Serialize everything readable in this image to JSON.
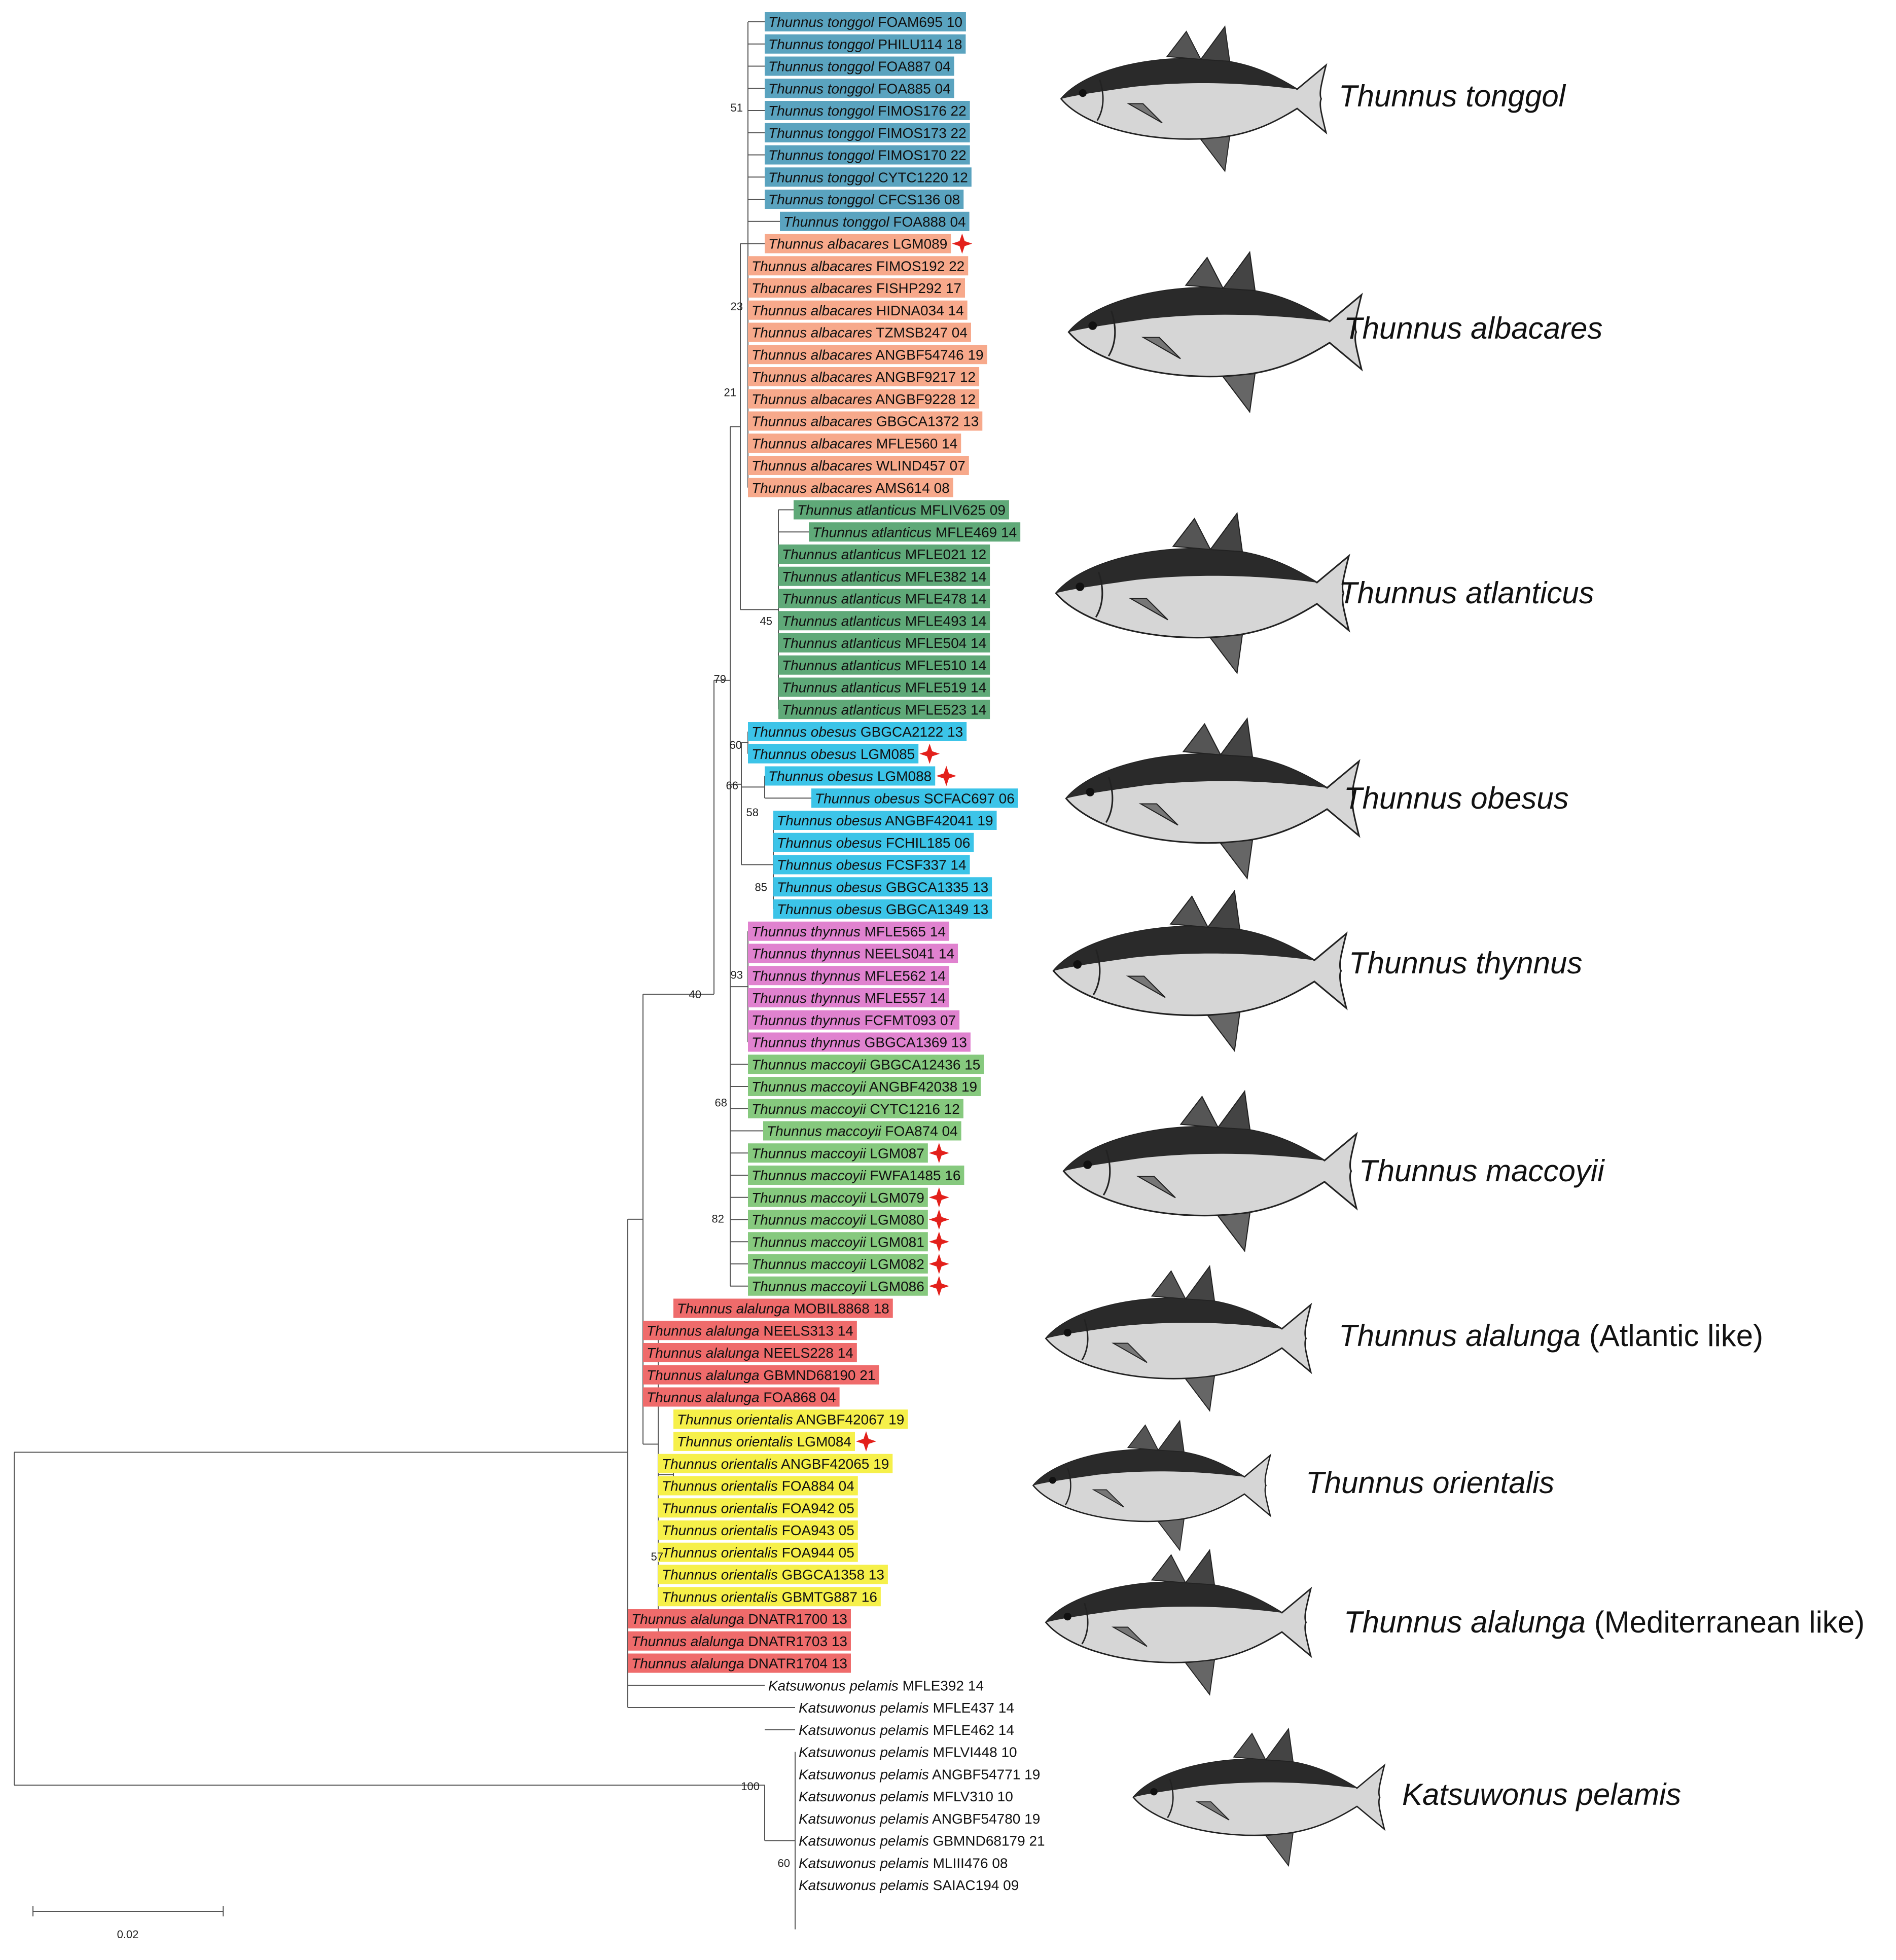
{
  "figure": {
    "title": "",
    "scale_bar": {
      "value": 0.02,
      "label": "0.02"
    }
  },
  "colors": {
    "tonggol": "#5aa3bf",
    "albacares": "#f7a98b",
    "atlantica": "#5fa978",
    "obesus": "#3cc4e8",
    "thynnus": "#e082cf",
    "maccoyii": "#86c97e",
    "alalunga": "#ef6b6b",
    "orientalis": "#f6f04a",
    "pelamis": "none",
    "marker": "#e3201b",
    "branch": "#555555"
  },
  "groups": [
    {
      "id": "tonggol",
      "species_label": [
        "Thunnus tonggol",
        ""
      ],
      "fish_icon": "tuna-illustration"
    },
    {
      "id": "albacares",
      "species_label": [
        "Thunnus albacares",
        ""
      ],
      "fish_icon": "tuna-illustration"
    },
    {
      "id": "atlantica",
      "species_label": [
        "Thunnus atlanticus",
        ""
      ],
      "fish_icon": "tuna-illustration"
    },
    {
      "id": "obesus",
      "species_label": [
        "Thunnus obesus",
        ""
      ],
      "fish_icon": "tuna-illustration"
    },
    {
      "id": "thynnus",
      "species_label": [
        "Thunnus thynnus",
        ""
      ],
      "fish_icon": "tuna-illustration"
    },
    {
      "id": "maccoyii",
      "species_label": [
        "Thunnus maccoyii",
        ""
      ],
      "fish_icon": "tuna-illustration"
    },
    {
      "id": "alalunga_atl",
      "species_label": [
        "Thunnus alalunga",
        " (Atlantic like)"
      ],
      "fish_icon": "tuna-illustration"
    },
    {
      "id": "orientalis",
      "species_label": [
        "Thunnus orientalis",
        ""
      ],
      "fish_icon": "tuna-illustration"
    },
    {
      "id": "alalunga_med",
      "species_label": [
        "Thunnus alalunga",
        " (Mediterranean like)"
      ],
      "fish_icon": "tuna-illustration"
    },
    {
      "id": "pelamis",
      "species_label": [
        "Katsuwonus pelamis",
        ""
      ],
      "fish_icon": "skipjack-illustration"
    }
  ],
  "tips": [
    {
      "species": "Thunnus tonggol",
      "code": "FOAM695 10",
      "group": "tonggol",
      "marked": false
    },
    {
      "species": "Thunnus tonggol",
      "code": "PHILU114 18",
      "group": "tonggol",
      "marked": false
    },
    {
      "species": "Thunnus tonggol",
      "code": "FOA887 04",
      "group": "tonggol",
      "marked": false
    },
    {
      "species": "Thunnus tonggol",
      "code": "FOA885 04",
      "group": "tonggol",
      "marked": false
    },
    {
      "species": "Thunnus tonggol",
      "code": "FIMOS176 22",
      "group": "tonggol",
      "marked": false
    },
    {
      "species": "Thunnus tonggol",
      "code": "FIMOS173 22",
      "group": "tonggol",
      "marked": false
    },
    {
      "species": "Thunnus tonggol",
      "code": "FIMOS170 22",
      "group": "tonggol",
      "marked": false
    },
    {
      "species": "Thunnus tonggol",
      "code": "CYTC1220 12",
      "group": "tonggol",
      "marked": false
    },
    {
      "species": "Thunnus tonggol",
      "code": "CFCS136 08",
      "group": "tonggol",
      "marked": false
    },
    {
      "species": "Thunnus tonggol",
      "code": "FOA888 04",
      "group": "tonggol",
      "marked": false
    },
    {
      "species": "Thunnus albacares",
      "code": "LGM089",
      "group": "albacares",
      "marked": true
    },
    {
      "species": "Thunnus albacares",
      "code": "FIMOS192 22",
      "group": "albacares",
      "marked": false
    },
    {
      "species": "Thunnus albacares",
      "code": "FISHP292 17",
      "group": "albacares",
      "marked": false
    },
    {
      "species": "Thunnus albacares",
      "code": "HIDNA034 14",
      "group": "albacares",
      "marked": false
    },
    {
      "species": "Thunnus albacares",
      "code": "TZMSB247 04",
      "group": "albacares",
      "marked": false
    },
    {
      "species": "Thunnus albacares",
      "code": "ANGBF54746 19",
      "group": "albacares",
      "marked": false
    },
    {
      "species": "Thunnus albacares",
      "code": "ANGBF9217 12",
      "group": "albacares",
      "marked": false
    },
    {
      "species": "Thunnus albacares",
      "code": "ANGBF9228 12",
      "group": "albacares",
      "marked": false
    },
    {
      "species": "Thunnus albacares",
      "code": "GBGCA1372 13",
      "group": "albacares",
      "marked": false
    },
    {
      "species": "Thunnus albacares",
      "code": "MFLE560 14",
      "group": "albacares",
      "marked": false
    },
    {
      "species": "Thunnus albacares",
      "code": "WLIND457 07",
      "group": "albacares",
      "marked": false
    },
    {
      "species": "Thunnus albacares",
      "code": "AMS614 08",
      "group": "albacares",
      "marked": false
    },
    {
      "species": "Thunnus atlanticus",
      "code": "MFLIV625 09",
      "group": "atlantica",
      "marked": false
    },
    {
      "species": "Thunnus atlanticus",
      "code": "MFLE469 14",
      "group": "atlantica",
      "marked": false
    },
    {
      "species": "Thunnus atlanticus",
      "code": "MFLE021 12",
      "group": "atlantica",
      "marked": false
    },
    {
      "species": "Thunnus atlanticus",
      "code": "MFLE382 14",
      "group": "atlantica",
      "marked": false
    },
    {
      "species": "Thunnus atlanticus",
      "code": "MFLE478 14",
      "group": "atlantica",
      "marked": false
    },
    {
      "species": "Thunnus atlanticus",
      "code": "MFLE493 14",
      "group": "atlantica",
      "marked": false
    },
    {
      "species": "Thunnus atlanticus",
      "code": "MFLE504 14",
      "group": "atlantica",
      "marked": false
    },
    {
      "species": "Thunnus atlanticus",
      "code": "MFLE510 14",
      "group": "atlantica",
      "marked": false
    },
    {
      "species": "Thunnus atlanticus",
      "code": "MFLE519 14",
      "group": "atlantica",
      "marked": false
    },
    {
      "species": "Thunnus atlanticus",
      "code": "MFLE523 14",
      "group": "atlantica",
      "marked": false
    },
    {
      "species": "Thunnus obesus",
      "code": "GBGCA2122 13",
      "group": "obesus",
      "marked": false
    },
    {
      "species": "Thunnus obesus",
      "code": "LGM085",
      "group": "obesus",
      "marked": true
    },
    {
      "species": "Thunnus obesus",
      "code": "LGM088",
      "group": "obesus",
      "marked": true
    },
    {
      "species": "Thunnus obesus",
      "code": "SCFAC697 06",
      "group": "obesus",
      "marked": false
    },
    {
      "species": "Thunnus obesus",
      "code": "ANGBF42041 19",
      "group": "obesus",
      "marked": false
    },
    {
      "species": "Thunnus obesus",
      "code": "FCHIL185 06",
      "group": "obesus",
      "marked": false
    },
    {
      "species": "Thunnus obesus",
      "code": "FCSF337 14",
      "group": "obesus",
      "marked": false
    },
    {
      "species": "Thunnus obesus",
      "code": "GBGCA1335 13",
      "group": "obesus",
      "marked": false
    },
    {
      "species": "Thunnus obesus",
      "code": "GBGCA1349 13",
      "group": "obesus",
      "marked": false
    },
    {
      "species": "Thunnus thynnus",
      "code": "MFLE565 14",
      "group": "thynnus",
      "marked": false
    },
    {
      "species": "Thunnus thynnus",
      "code": "NEELS041 14",
      "group": "thynnus",
      "marked": false
    },
    {
      "species": "Thunnus thynnus",
      "code": "MFLE562 14",
      "group": "thynnus",
      "marked": false
    },
    {
      "species": "Thunnus thynnus",
      "code": "MFLE557 14",
      "group": "thynnus",
      "marked": false
    },
    {
      "species": "Thunnus thynnus",
      "code": "FCFMT093 07",
      "group": "thynnus",
      "marked": false
    },
    {
      "species": "Thunnus thynnus",
      "code": "GBGCA1369 13",
      "group": "thynnus",
      "marked": false
    },
    {
      "species": "Thunnus maccoyii",
      "code": "GBGCA12436 15",
      "group": "maccoyii",
      "marked": false
    },
    {
      "species": "Thunnus maccoyii",
      "code": "ANGBF42038 19",
      "group": "maccoyii",
      "marked": false
    },
    {
      "species": "Thunnus maccoyii",
      "code": "CYTC1216 12",
      "group": "maccoyii",
      "marked": false
    },
    {
      "species": "Thunnus maccoyii",
      "code": "FOA874 04",
      "group": "maccoyii",
      "marked": false
    },
    {
      "species": "Thunnus maccoyii",
      "code": "LGM087",
      "group": "maccoyii",
      "marked": true
    },
    {
      "species": "Thunnus maccoyii",
      "code": "FWFA1485 16",
      "group": "maccoyii",
      "marked": false
    },
    {
      "species": "Thunnus maccoyii",
      "code": "LGM079",
      "group": "maccoyii",
      "marked": true
    },
    {
      "species": "Thunnus maccoyii",
      "code": "LGM080",
      "group": "maccoyii",
      "marked": true
    },
    {
      "species": "Thunnus maccoyii",
      "code": "LGM081",
      "group": "maccoyii",
      "marked": true
    },
    {
      "species": "Thunnus maccoyii",
      "code": "LGM082",
      "group": "maccoyii",
      "marked": true
    },
    {
      "species": "Thunnus maccoyii",
      "code": "LGM086",
      "group": "maccoyii",
      "marked": true
    },
    {
      "species": "Thunnus alalunga",
      "code": "MOBIL8868 18",
      "group": "alalunga",
      "marked": false
    },
    {
      "species": "Thunnus alalunga",
      "code": "NEELS313 14",
      "group": "alalunga",
      "marked": false
    },
    {
      "species": "Thunnus alalunga",
      "code": "NEELS228 14",
      "group": "alalunga",
      "marked": false
    },
    {
      "species": "Thunnus alalunga",
      "code": "GBMND68190 21",
      "group": "alalunga",
      "marked": false
    },
    {
      "species": "Thunnus alalunga",
      "code": "FOA868 04",
      "group": "alalunga",
      "marked": false
    },
    {
      "species": "Thunnus orientalis",
      "code": "ANGBF42067 19",
      "group": "orientalis",
      "marked": false
    },
    {
      "species": "Thunnus orientalis",
      "code": "LGM084",
      "group": "orientalis",
      "marked": true
    },
    {
      "species": "Thunnus orientalis",
      "code": "ANGBF42065 19",
      "group": "orientalis",
      "marked": false
    },
    {
      "species": "Thunnus orientalis",
      "code": "FOA884 04",
      "group": "orientalis",
      "marked": false
    },
    {
      "species": "Thunnus orientalis",
      "code": "FOA942 05",
      "group": "orientalis",
      "marked": false
    },
    {
      "species": "Thunnus orientalis",
      "code": "FOA943 05",
      "group": "orientalis",
      "marked": false
    },
    {
      "species": "Thunnus orientalis",
      "code": "FOA944 05",
      "group": "orientalis",
      "marked": false
    },
    {
      "species": "Thunnus orientalis",
      "code": "GBGCA1358 13",
      "group": "orientalis",
      "marked": false
    },
    {
      "species": "Thunnus orientalis",
      "code": "GBMTG887 16",
      "group": "orientalis",
      "marked": false
    },
    {
      "species": "Thunnus alalunga",
      "code": "DNATR1700 13",
      "group": "alalunga",
      "marked": false
    },
    {
      "species": "Thunnus alalunga",
      "code": "DNATR1703 13",
      "group": "alalunga",
      "marked": false
    },
    {
      "species": "Thunnus alalunga",
      "code": "DNATR1704 13",
      "group": "alalunga",
      "marked": false
    },
    {
      "species": "Katsuwonus pelamis",
      "code": "MFLE392 14",
      "group": "pelamis",
      "marked": false
    },
    {
      "species": "Katsuwonus pelamis",
      "code": "MFLE437 14",
      "group": "pelamis",
      "marked": false
    },
    {
      "species": "Katsuwonus pelamis",
      "code": "MFLE462 14",
      "group": "pelamis",
      "marked": false
    },
    {
      "species": "Katsuwonus pelamis",
      "code": "MFLVI448 10",
      "group": "pelamis",
      "marked": false
    },
    {
      "species": "Katsuwonus pelamis",
      "code": "ANGBF54771 19",
      "group": "pelamis",
      "marked": false
    },
    {
      "species": "Katsuwonus pelamis",
      "code": "MFLV310 10",
      "group": "pelamis",
      "marked": false
    },
    {
      "species": "Katsuwonus pelamis",
      "code": "ANGBF54780 19",
      "group": "pelamis",
      "marked": false
    },
    {
      "species": "Katsuwonus pelamis",
      "code": "GBMND68179 21",
      "group": "pelamis",
      "marked": false
    },
    {
      "species": "Katsuwonus pelamis",
      "code": "MLIII476 08",
      "group": "pelamis",
      "marked": false
    },
    {
      "species": "Katsuwonus pelamis",
      "code": "SAIAC194 09",
      "group": "pelamis",
      "marked": false
    }
  ],
  "bootstrap": [
    "51",
    "23",
    "21",
    "45",
    "60",
    "58",
    "66",
    "85",
    "79",
    "93",
    "68",
    "82",
    "40",
    "57",
    "100",
    "60"
  ]
}
